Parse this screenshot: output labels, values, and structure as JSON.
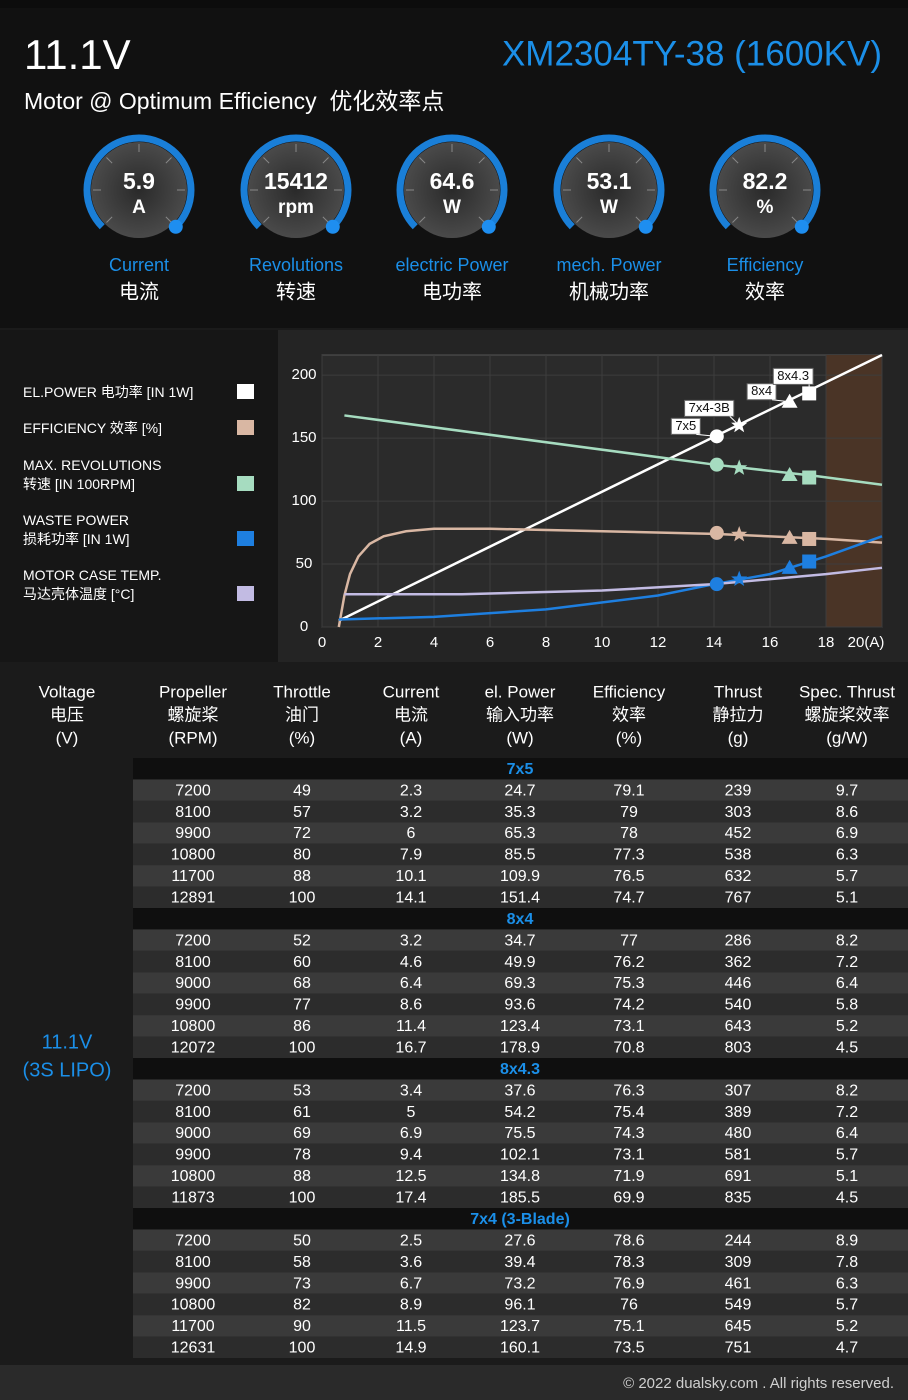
{
  "header": {
    "voltage": "11.1V",
    "model": "XM2304TY-38 (1600KV)",
    "subtitle": "Motor @ Optimum Efficiency  优化效率点"
  },
  "gauges": [
    {
      "value": 5.9,
      "unit": "A",
      "label": "Current",
      "label_cn": "电流"
    },
    {
      "value": 15412,
      "unit": "rpm",
      "label": "Revolutions",
      "label_cn": "转速"
    },
    {
      "value": 64.6,
      "unit": "W",
      "label": "electric Power",
      "label_cn": "电功率"
    },
    {
      "value": 53.1,
      "unit": "W",
      "label": "mech. Power",
      "label_cn": "机械功率"
    },
    {
      "value": 82.2,
      "unit": "%",
      "label": "Efficiency",
      "label_cn": "效率"
    }
  ],
  "chart_data": {
    "type": "line",
    "xlim": [
      0,
      20
    ],
    "xticks": [
      0,
      2,
      4,
      6,
      8,
      10,
      12,
      14,
      16,
      18,
      {
        "value": 20,
        "label": "20(A)"
      }
    ],
    "ylim": [
      0,
      216
    ],
    "yticks": [
      0,
      50,
      100,
      150,
      200
    ],
    "grid": true,
    "highlight_x": [
      18,
      20
    ],
    "marker_labels": [
      "7x5",
      "7x4-3B",
      "8x4",
      "8x4.3"
    ],
    "marker_x": [
      14.1,
      14.9,
      16.7,
      17.4
    ],
    "series": [
      {
        "name": "EL.POWER 电功率 [IN 1W]",
        "color": "#ffffff",
        "x": [
          0.6,
          14,
          20
        ],
        "values": [
          5,
          151,
          216
        ],
        "marker_values": [
          151.4,
          160.1,
          178.9,
          185.5
        ]
      },
      {
        "name": "EFFICIENCY 效率 [%]",
        "color": "#d9b7a3",
        "x": [
          0.6,
          0.8,
          1,
          1.3,
          1.7,
          2.2,
          3,
          4,
          6,
          10,
          14,
          18,
          20
        ],
        "values": [
          0,
          25,
          42,
          56,
          66,
          72,
          76,
          78,
          78,
          76,
          74,
          70,
          67
        ],
        "marker_values": [
          74.7,
          73.5,
          70.8,
          69.9
        ]
      },
      {
        "name": "MAX. REVOLUTIONS\n转速 [IN 100RPM]",
        "color": "#a6dcc0",
        "x": [
          0.8,
          14,
          17.6,
          20
        ],
        "values": [
          168,
          129,
          120,
          113
        ],
        "marker_values": [
          128.9,
          126.3,
          120.7,
          118.7
        ]
      },
      {
        "name": "WASTE POWER\n损耗功率 [IN 1W]",
        "color": "#1e7fe0",
        "x": [
          0.6,
          4,
          8,
          12,
          14,
          16,
          18,
          20
        ],
        "values": [
          6,
          8,
          14,
          25,
          34,
          42,
          56,
          72
        ],
        "marker_values": [
          34,
          38,
          47,
          52
        ]
      },
      {
        "name": "MOTOR CASE TEMP.\n马达壳体温度 [°C]",
        "color": "#c2bbe3",
        "x": [
          0.8,
          5,
          10,
          14,
          18,
          20
        ],
        "values": [
          26,
          26,
          29,
          34,
          42,
          47
        ]
      }
    ]
  },
  "table": {
    "columns": [
      {
        "en": "Voltage",
        "cn": "电压",
        "unit": "(V)"
      },
      {
        "en": "Propeller",
        "cn": "螺旋桨",
        "unit": "(RPM)"
      },
      {
        "en": "Throttle",
        "cn": "油门",
        "unit": "(%)"
      },
      {
        "en": "Current",
        "cn": "电流",
        "unit": "(A)"
      },
      {
        "en": "el. Power",
        "cn": "输入功率",
        "unit": "(W)"
      },
      {
        "en": "Efficiency",
        "cn": "效率",
        "unit": "(%)"
      },
      {
        "en": "Thrust",
        "cn": "静拉力",
        "unit": "(g)"
      },
      {
        "en": "Spec. Thrust",
        "cn": "螺旋桨效率",
        "unit": "(g/W)"
      }
    ],
    "voltage": "11.1V",
    "battery": "(3S LIPO)",
    "groups": [
      {
        "name": "7x5",
        "rows": [
          [
            7200,
            49,
            2.3,
            24.7,
            79.1,
            239,
            9.7
          ],
          [
            8100,
            57,
            3.2,
            35.3,
            79,
            303,
            8.6
          ],
          [
            9900,
            72,
            6,
            65.3,
            78,
            452,
            6.9
          ],
          [
            10800,
            80,
            7.9,
            85.5,
            77.3,
            538,
            6.3
          ],
          [
            11700,
            88,
            10.1,
            109.9,
            76.5,
            632,
            5.7
          ],
          [
            12891,
            100,
            14.1,
            151.4,
            74.7,
            767,
            5.1
          ]
        ]
      },
      {
        "name": "8x4",
        "rows": [
          [
            7200,
            52,
            3.2,
            34.7,
            77,
            286,
            8.2
          ],
          [
            8100,
            60,
            4.6,
            49.9,
            76.2,
            362,
            7.2
          ],
          [
            9000,
            68,
            6.4,
            69.3,
            75.3,
            446,
            6.4
          ],
          [
            9900,
            77,
            8.6,
            93.6,
            74.2,
            540,
            5.8
          ],
          [
            10800,
            86,
            11.4,
            123.4,
            73.1,
            643,
            5.2
          ],
          [
            12072,
            100,
            16.7,
            178.9,
            70.8,
            803,
            4.5
          ]
        ]
      },
      {
        "name": "8x4.3",
        "rows": [
          [
            7200,
            53,
            3.4,
            37.6,
            76.3,
            307,
            8.2
          ],
          [
            8100,
            61,
            5,
            54.2,
            75.4,
            389,
            7.2
          ],
          [
            9000,
            69,
            6.9,
            75.5,
            74.3,
            480,
            6.4
          ],
          [
            9900,
            78,
            9.4,
            102.1,
            73.1,
            581,
            5.7
          ],
          [
            10800,
            88,
            12.5,
            134.8,
            71.9,
            691,
            5.1
          ],
          [
            11873,
            100,
            17.4,
            185.5,
            69.9,
            835,
            4.5
          ]
        ]
      },
      {
        "name": "7x4 (3-Blade)",
        "rows": [
          [
            7200,
            50,
            2.5,
            27.6,
            78.6,
            244,
            8.9
          ],
          [
            8100,
            58,
            3.6,
            39.4,
            78.3,
            309,
            7.8
          ],
          [
            9900,
            73,
            6.7,
            73.2,
            76.9,
            461,
            6.3
          ],
          [
            10800,
            82,
            8.9,
            96.1,
            76,
            549,
            5.7
          ],
          [
            11700,
            90,
            11.5,
            123.7,
            75.1,
            645,
            5.2
          ],
          [
            12631,
            100,
            14.9,
            160.1,
            73.5,
            751,
            4.7
          ]
        ]
      }
    ]
  },
  "footer": "© 2022 dualsky.com . All rights reserved."
}
